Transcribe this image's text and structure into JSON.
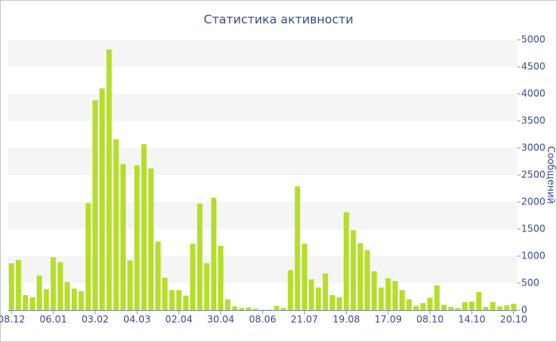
{
  "chart_data": {
    "type": "bar",
    "title": "Статистика активности",
    "y_label": "Сообщений",
    "categories": [
      "08.12",
      null,
      null,
      null,
      null,
      null,
      "06.01",
      null,
      null,
      null,
      null,
      null,
      "03.02",
      null,
      null,
      null,
      null,
      null,
      "04.03",
      null,
      null,
      null,
      null,
      null,
      "02.04",
      null,
      null,
      null,
      null,
      null,
      "30.04",
      null,
      null,
      null,
      null,
      null,
      "08.06",
      null,
      null,
      null,
      null,
      null,
      "21.07",
      null,
      null,
      null,
      null,
      null,
      "19.08",
      null,
      null,
      null,
      null,
      null,
      "17.09",
      null,
      null,
      null,
      null,
      null,
      "08.10",
      null,
      null,
      null,
      null,
      null,
      "14.10",
      null,
      null,
      null,
      null,
      null,
      "20.10"
    ],
    "values": [
      867,
      930,
      280,
      240,
      640,
      390,
      980,
      890,
      520,
      400,
      350,
      1980,
      3880,
      4100,
      4820,
      3160,
      2700,
      920,
      2680,
      3070,
      2620,
      1270,
      600,
      370,
      370,
      270,
      1230,
      1970,
      870,
      2080,
      1190,
      200,
      70,
      40,
      50,
      30,
      10,
      10,
      80,
      40,
      740,
      2290,
      1230,
      570,
      420,
      680,
      280,
      240,
      1810,
      1480,
      1240,
      1110,
      720,
      420,
      590,
      540,
      370,
      200,
      80,
      130,
      230,
      460,
      100,
      60,
      40,
      150,
      160,
      340,
      60,
      150,
      70,
      90,
      120
    ],
    "color": "#b5de2a",
    "ylim": [
      0,
      5000
    ],
    "yticks": [
      0,
      500,
      1000,
      1500,
      2000,
      2500,
      3000,
      3500,
      4000,
      4500,
      5000
    ],
    "grid": true
  }
}
